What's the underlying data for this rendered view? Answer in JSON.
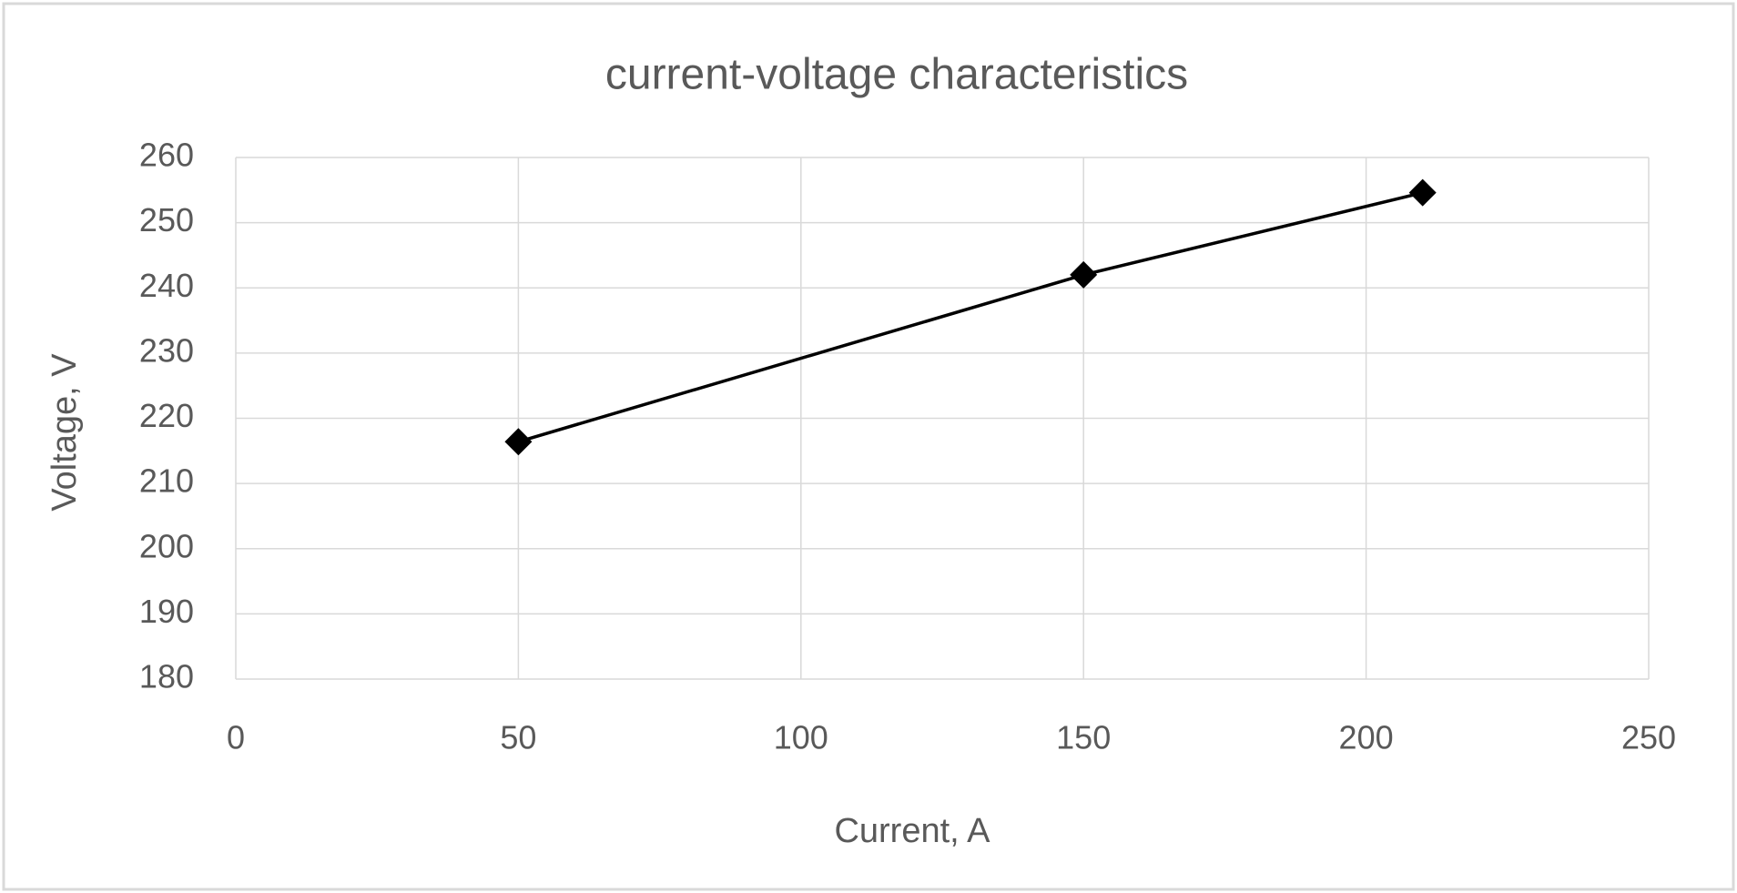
{
  "chart_data": {
    "type": "line",
    "title": "current-voltage characteristics",
    "x_label": "Current, A",
    "y_label": "Voltage, V",
    "x": [
      50,
      150,
      210
    ],
    "values": [
      216.4,
      242,
      254.6
    ],
    "color": "#000000",
    "marker": "diamond",
    "xlim": [
      0,
      250
    ],
    "xticks": [
      0,
      50,
      100,
      150,
      200,
      250
    ],
    "ylim": [
      180,
      260
    ],
    "yticks": [
      180,
      190,
      200,
      210,
      220,
      230,
      240,
      250,
      260
    ],
    "grid": true
  }
}
